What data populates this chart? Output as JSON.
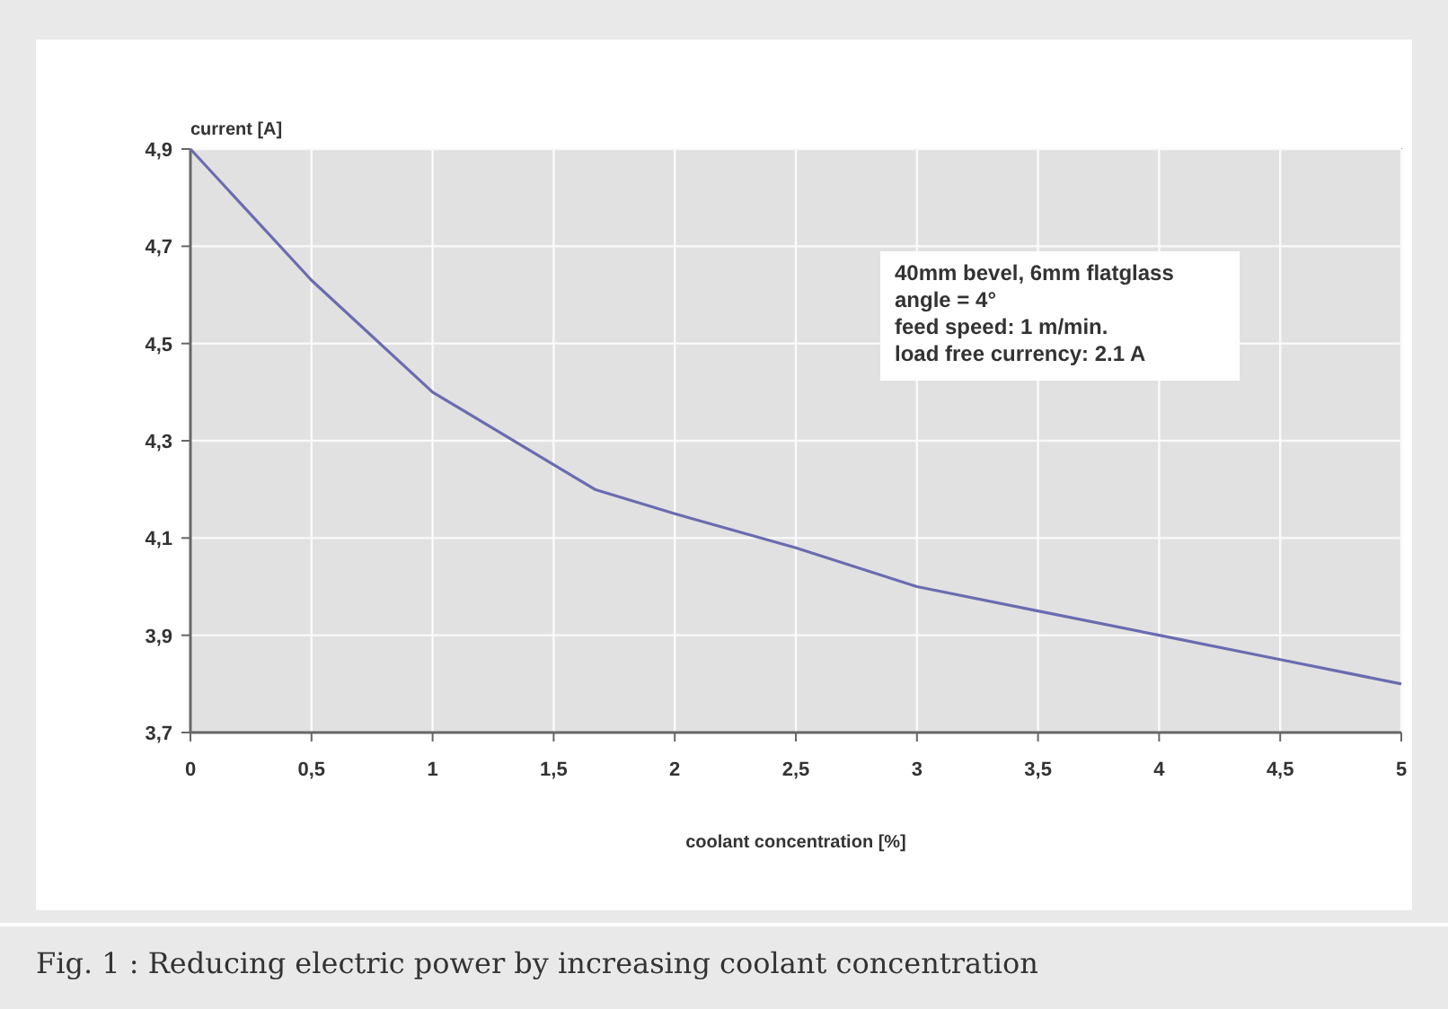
{
  "chart_data": {
    "type": "line",
    "title": "Fig. 1 : Reducing electric power by increasing coolant concentration",
    "xlabel": "coolant concentration [%]",
    "ylabel": "current [A]",
    "x": [
      0,
      0.5,
      1,
      1.67,
      2,
      2.5,
      3,
      3.5,
      4,
      4.5,
      5
    ],
    "series": [
      {
        "color": "#6b6bb0",
        "values": [
          4.9,
          4.63,
          4.4,
          4.2,
          4.15,
          4.08,
          4.0,
          3.95,
          3.9,
          3.85,
          3.8
        ]
      }
    ],
    "xlim": [
      0,
      5
    ],
    "ylim": [
      3.7,
      4.9
    ],
    "xticks": [
      0,
      {
        "value": 0.5,
        "label": "0,5"
      },
      1,
      {
        "value": 1.5,
        "label": "1,5"
      },
      2,
      {
        "value": 2.5,
        "label": "2,5"
      },
      3,
      {
        "value": 3.5,
        "label": "3,5"
      },
      4,
      {
        "value": 4.5,
        "label": "4,5"
      },
      5
    ],
    "yticks": [
      {
        "value": 3.7,
        "label": "3,7"
      },
      {
        "value": 3.9,
        "label": "3,9"
      },
      {
        "value": 4.1,
        "label": "4,1"
      },
      {
        "value": 4.3,
        "label": "4,3"
      },
      {
        "value": 4.5,
        "label": "4,5"
      },
      {
        "value": 4.7,
        "label": "4,7"
      },
      {
        "value": 4.9,
        "label": "4,9"
      }
    ],
    "annotations": [
      "40mm bevel, 6mm flatglass",
      "angle = 4°",
      "feed speed: 1 m/min.",
      "load free currency: 2.1 A"
    ],
    "grid": true,
    "marker": "none",
    "line_style": "solid"
  }
}
